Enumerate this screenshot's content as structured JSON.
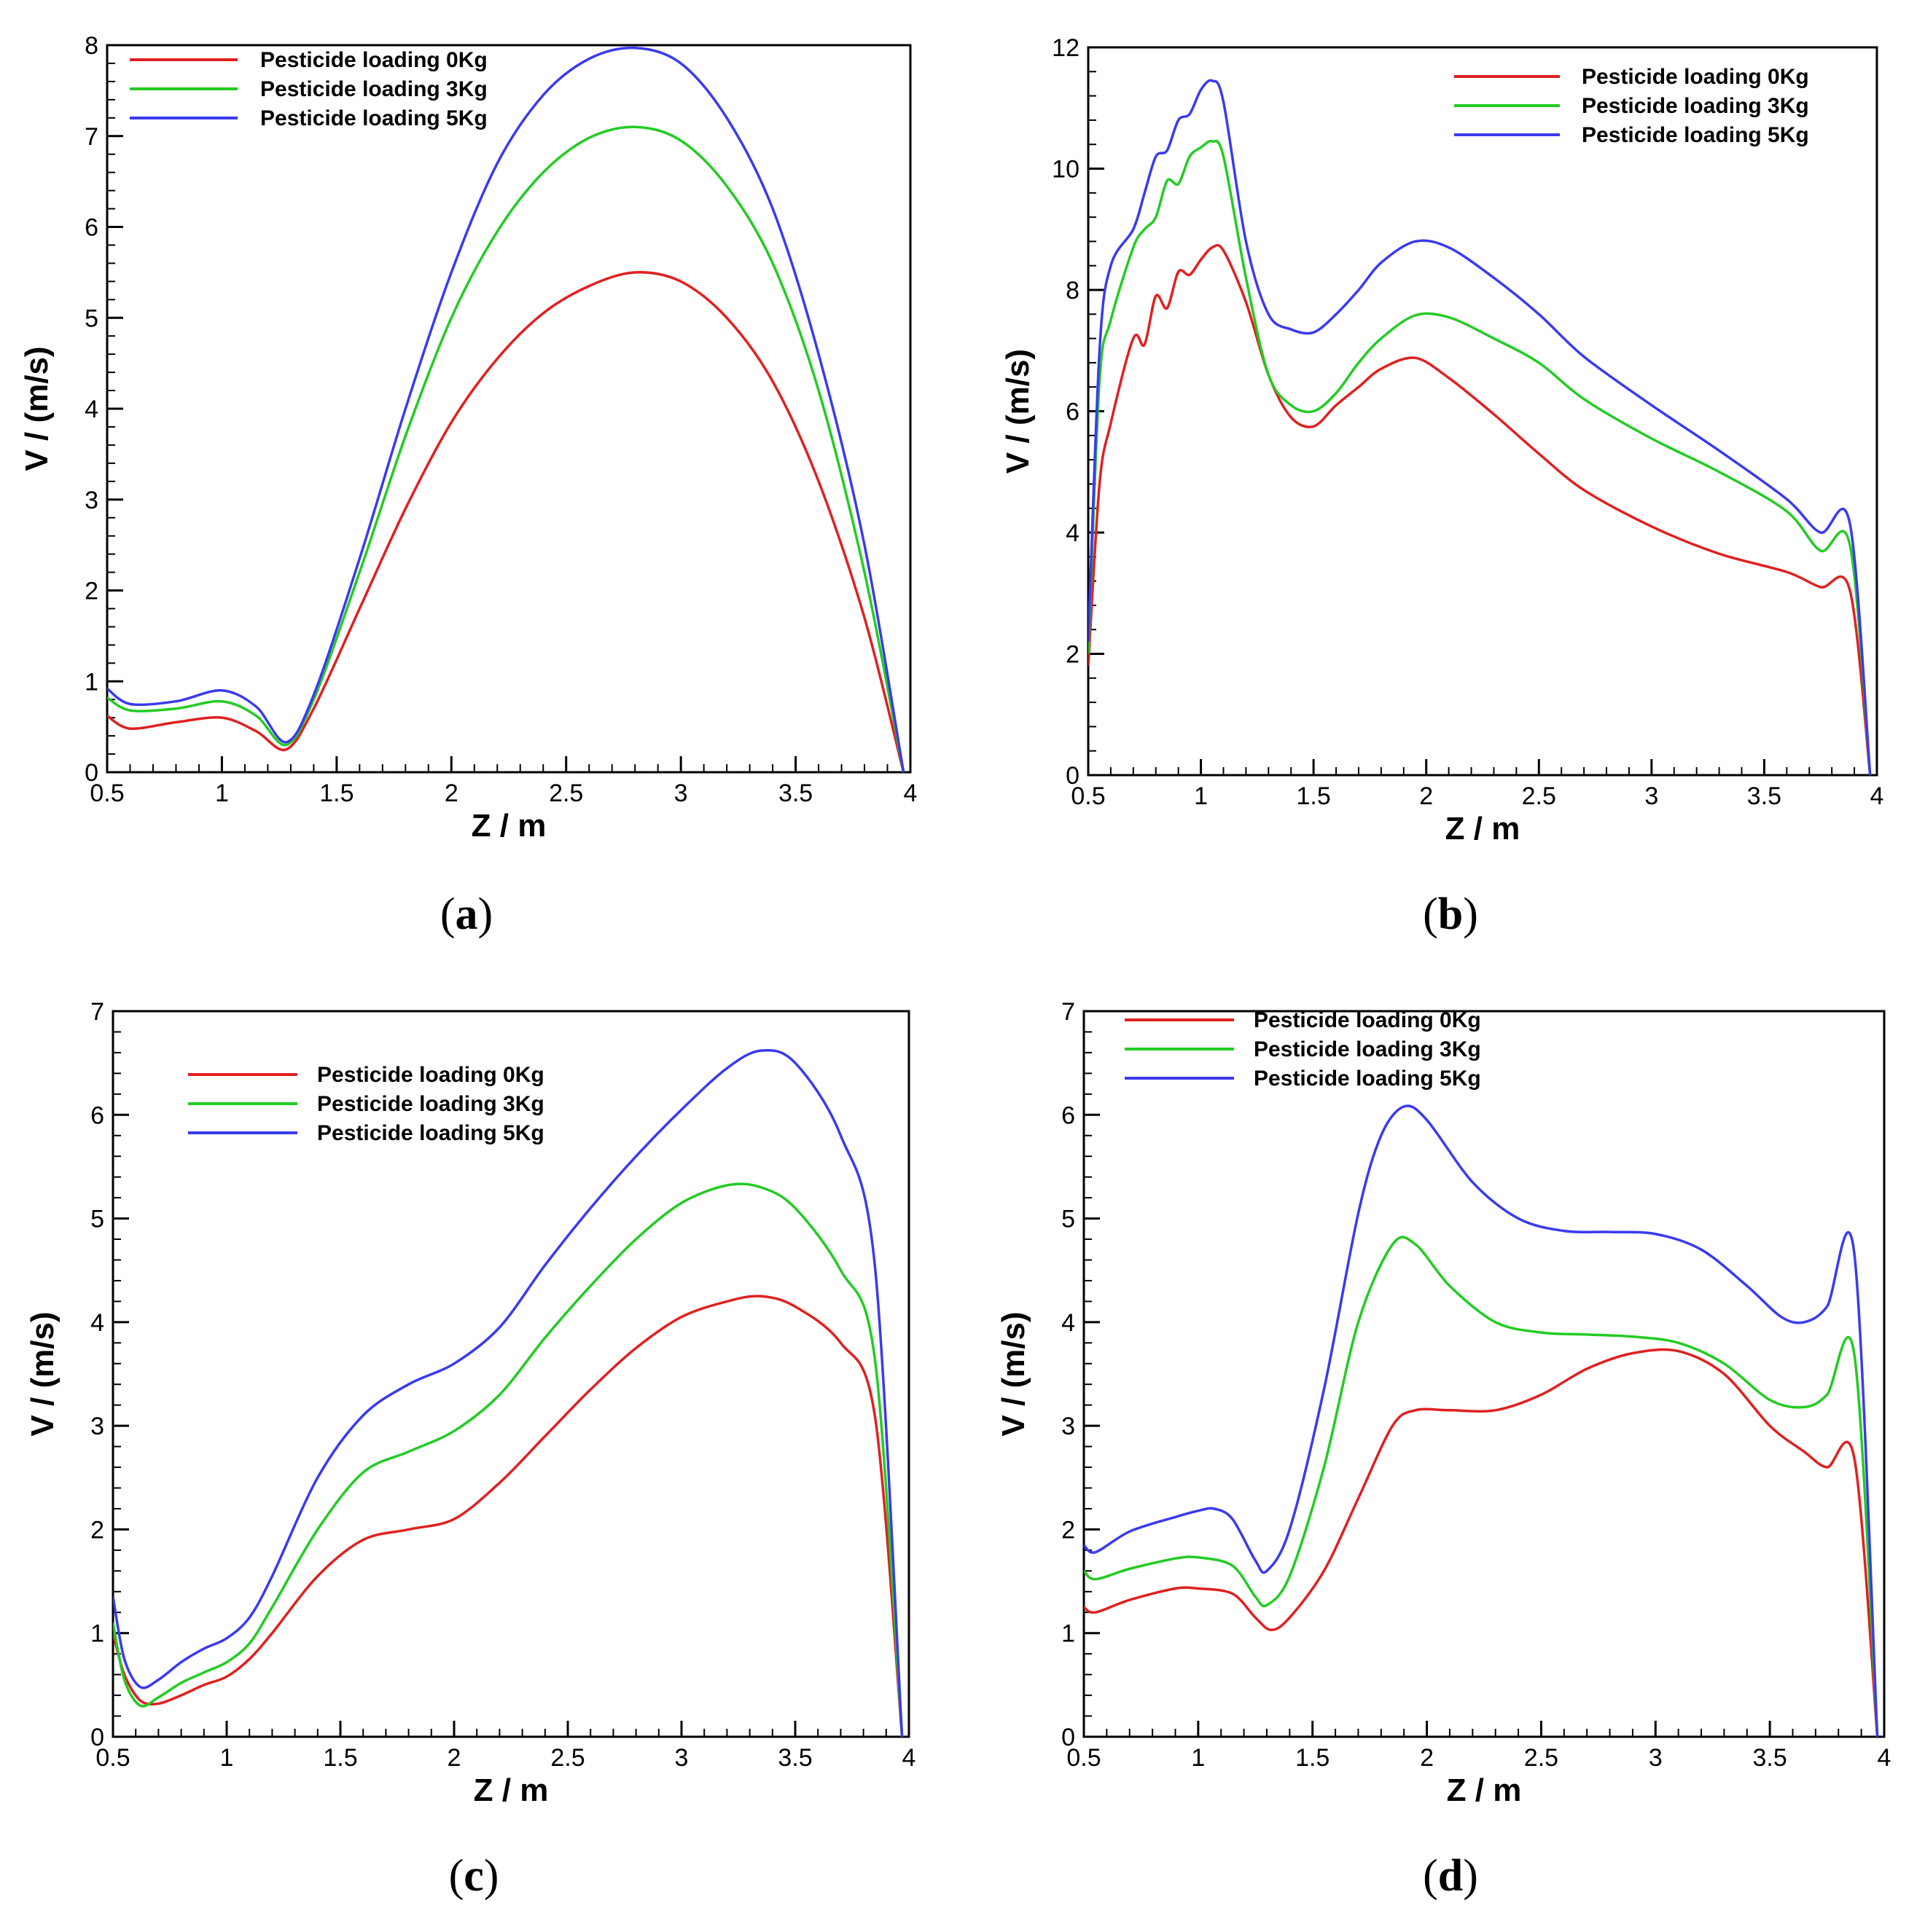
{
  "figure": {
    "colors": {
      "red": "#e02020",
      "green": "#22cc22",
      "blue": "#3a3af0"
    }
  },
  "chart_data": [
    {
      "panel_label": "(a)",
      "panel_letter": "a",
      "type": "line",
      "xlabel": "Z / m",
      "ylabel": "V / (m/s)",
      "xlim": [
        0.5,
        4
      ],
      "ylim": [
        0,
        8
      ],
      "xticks": [
        0.5,
        1,
        1.5,
        2,
        2.5,
        3,
        3.5,
        4
      ],
      "xtick_labels": [
        "0.5",
        "1",
        "1.5",
        "2",
        "2.5",
        "3",
        "3.5",
        "4"
      ],
      "yticks": [
        0,
        1,
        2,
        3,
        4,
        5,
        6,
        7,
        8
      ],
      "ytick_labels": [
        "0",
        "1",
        "2",
        "3",
        "4",
        "5",
        "6",
        "7",
        "8"
      ],
      "legend_position": "top-left",
      "series": [
        {
          "name": "Pesticide loading 0Kg",
          "color": "#e02020",
          "x": [
            0.5,
            0.6,
            0.8,
            1.0,
            1.15,
            1.28,
            1.4,
            1.6,
            1.8,
            2.0,
            2.2,
            2.4,
            2.6,
            2.8,
            3.0,
            3.2,
            3.4,
            3.6,
            3.8,
            3.97
          ],
          "y": [
            0.62,
            0.48,
            0.55,
            0.6,
            0.45,
            0.25,
            0.7,
            1.8,
            2.9,
            3.85,
            4.55,
            5.05,
            5.35,
            5.5,
            5.4,
            5.0,
            4.3,
            3.2,
            1.7,
            0.0
          ]
        },
        {
          "name": "Pesticide loading 3Kg",
          "color": "#22cc22",
          "x": [
            0.5,
            0.6,
            0.8,
            1.0,
            1.15,
            1.28,
            1.4,
            1.6,
            1.8,
            2.0,
            2.2,
            2.4,
            2.6,
            2.8,
            3.0,
            3.2,
            3.4,
            3.6,
            3.8,
            3.97
          ],
          "y": [
            0.82,
            0.68,
            0.7,
            0.78,
            0.62,
            0.3,
            0.8,
            2.2,
            3.7,
            5.0,
            5.95,
            6.6,
            6.98,
            7.1,
            6.95,
            6.45,
            5.6,
            4.2,
            2.2,
            0.0
          ]
        },
        {
          "name": "Pesticide loading 5Kg",
          "color": "#3a3af0",
          "x": [
            0.5,
            0.6,
            0.8,
            1.0,
            1.15,
            1.28,
            1.4,
            1.6,
            1.8,
            2.0,
            2.2,
            2.4,
            2.6,
            2.8,
            3.0,
            3.2,
            3.4,
            3.6,
            3.8,
            3.97
          ],
          "y": [
            0.92,
            0.75,
            0.78,
            0.9,
            0.72,
            0.33,
            0.85,
            2.35,
            4.0,
            5.5,
            6.7,
            7.45,
            7.85,
            7.97,
            7.8,
            7.2,
            6.2,
            4.6,
            2.5,
            0.0
          ]
        }
      ]
    },
    {
      "panel_label": "(b)",
      "panel_letter": "b",
      "type": "line",
      "xlabel": "Z / m",
      "ylabel": "V / (m/s)",
      "xlim": [
        0.5,
        4
      ],
      "ylim": [
        0,
        12
      ],
      "xticks": [
        0.5,
        1,
        1.5,
        2,
        2.5,
        3,
        3.5,
        4
      ],
      "xtick_labels": [
        "0.5",
        "1",
        "1.5",
        "2",
        "2.5",
        "3",
        "3.5",
        "4"
      ],
      "yticks": [
        0,
        2,
        4,
        6,
        8,
        10,
        12
      ],
      "ytick_labels": [
        "0",
        "2",
        "4",
        "6",
        "8",
        "10",
        "12"
      ],
      "legend_position": "top-right",
      "series": [
        {
          "name": "Pesticide loading 0Kg",
          "color": "#e02020",
          "x": [
            0.5,
            0.55,
            0.6,
            0.7,
            0.75,
            0.8,
            0.85,
            0.9,
            0.95,
            1.0,
            1.05,
            1.1,
            1.2,
            1.3,
            1.4,
            1.5,
            1.6,
            1.7,
            1.8,
            1.95,
            2.1,
            2.3,
            2.5,
            2.7,
            3.0,
            3.3,
            3.6,
            3.75,
            3.88,
            3.97
          ],
          "y": [
            1.8,
            4.8,
            5.8,
            7.2,
            7.1,
            7.9,
            7.7,
            8.3,
            8.25,
            8.5,
            8.7,
            8.65,
            7.8,
            6.6,
            5.9,
            5.75,
            6.1,
            6.4,
            6.7,
            6.88,
            6.55,
            5.95,
            5.3,
            4.7,
            4.1,
            3.65,
            3.35,
            3.1,
            3.05,
            0.0
          ]
        },
        {
          "name": "Pesticide loading 3Kg",
          "color": "#22cc22",
          "x": [
            0.5,
            0.55,
            0.6,
            0.7,
            0.75,
            0.8,
            0.85,
            0.9,
            0.95,
            1.0,
            1.05,
            1.1,
            1.2,
            1.3,
            1.4,
            1.5,
            1.6,
            1.7,
            1.8,
            1.95,
            2.1,
            2.3,
            2.5,
            2.7,
            3.0,
            3.3,
            3.6,
            3.75,
            3.88,
            3.97
          ],
          "y": [
            2.0,
            6.5,
            7.5,
            8.7,
            9.0,
            9.2,
            9.8,
            9.75,
            10.2,
            10.35,
            10.45,
            10.2,
            8.2,
            6.6,
            6.1,
            6.0,
            6.3,
            6.8,
            7.2,
            7.58,
            7.55,
            7.2,
            6.8,
            6.2,
            5.55,
            5.0,
            4.35,
            3.7,
            3.8,
            0.0
          ]
        },
        {
          "name": "Pesticide loading 5Kg",
          "color": "#3a3af0",
          "x": [
            0.5,
            0.55,
            0.6,
            0.7,
            0.75,
            0.8,
            0.85,
            0.9,
            0.95,
            1.0,
            1.05,
            1.1,
            1.2,
            1.3,
            1.4,
            1.5,
            1.6,
            1.7,
            1.8,
            1.95,
            2.1,
            2.3,
            2.5,
            2.7,
            3.0,
            3.3,
            3.6,
            3.75,
            3.88,
            3.97
          ],
          "y": [
            2.2,
            7.0,
            8.4,
            9.0,
            9.6,
            10.2,
            10.3,
            10.8,
            10.9,
            11.3,
            11.45,
            11.1,
            8.8,
            7.6,
            7.35,
            7.3,
            7.6,
            8.0,
            8.45,
            8.8,
            8.7,
            8.2,
            7.6,
            6.9,
            6.1,
            5.35,
            4.55,
            4.0,
            4.15,
            0.0
          ]
        }
      ]
    },
    {
      "panel_label": "(c)",
      "panel_letter": "c",
      "type": "line",
      "xlabel": "Z / m",
      "ylabel": "V / (m/s)",
      "xlim": [
        0.5,
        4
      ],
      "ylim": [
        0,
        7
      ],
      "xticks": [
        0.5,
        1,
        1.5,
        2,
        2.5,
        3,
        3.5,
        4
      ],
      "xtick_labels": [
        "0.5",
        "1",
        "1.5",
        "2",
        "2.5",
        "3",
        "3.5",
        "4"
      ],
      "yticks": [
        0,
        1,
        2,
        3,
        4,
        5,
        6,
        7
      ],
      "ytick_labels": [
        "0",
        "1",
        "2",
        "3",
        "4",
        "5",
        "6",
        "7"
      ],
      "legend_position": "top-left",
      "series": [
        {
          "name": "Pesticide loading 0Kg",
          "color": "#e02020",
          "x": [
            0.5,
            0.55,
            0.62,
            0.7,
            0.8,
            0.9,
            1.0,
            1.1,
            1.2,
            1.4,
            1.6,
            1.8,
            2.0,
            2.2,
            2.4,
            2.6,
            2.8,
            3.0,
            3.2,
            3.35,
            3.5,
            3.7,
            3.85,
            3.97
          ],
          "y": [
            1.0,
            0.6,
            0.35,
            0.32,
            0.4,
            0.5,
            0.58,
            0.75,
            1.0,
            1.55,
            1.9,
            2.0,
            2.1,
            2.45,
            2.9,
            3.35,
            3.75,
            4.05,
            4.2,
            4.25,
            4.15,
            3.8,
            3.1,
            0.0
          ]
        },
        {
          "name": "Pesticide loading 3Kg",
          "color": "#22cc22",
          "x": [
            0.5,
            0.55,
            0.62,
            0.7,
            0.8,
            0.9,
            1.0,
            1.1,
            1.2,
            1.4,
            1.6,
            1.8,
            2.0,
            2.2,
            2.4,
            2.6,
            2.8,
            3.0,
            3.2,
            3.35,
            3.5,
            3.7,
            3.85,
            3.97
          ],
          "y": [
            1.1,
            0.55,
            0.3,
            0.38,
            0.52,
            0.62,
            0.72,
            0.9,
            1.25,
            2.0,
            2.55,
            2.75,
            2.95,
            3.3,
            3.85,
            4.35,
            4.8,
            5.15,
            5.32,
            5.3,
            5.1,
            4.5,
            3.65,
            0.0
          ]
        },
        {
          "name": "Pesticide loading 5Kg",
          "color": "#3a3af0",
          "x": [
            0.5,
            0.55,
            0.62,
            0.7,
            0.8,
            0.9,
            1.0,
            1.1,
            1.2,
            1.4,
            1.6,
            1.8,
            2.0,
            2.2,
            2.4,
            2.6,
            2.8,
            3.0,
            3.2,
            3.35,
            3.5,
            3.7,
            3.85,
            3.97
          ],
          "y": [
            1.35,
            0.75,
            0.48,
            0.55,
            0.72,
            0.85,
            0.95,
            1.15,
            1.55,
            2.5,
            3.1,
            3.4,
            3.6,
            3.95,
            4.55,
            5.1,
            5.6,
            6.05,
            6.45,
            6.62,
            6.5,
            5.8,
            4.55,
            0.0
          ]
        }
      ]
    },
    {
      "panel_label": "(d)",
      "panel_letter": "d",
      "type": "line",
      "xlabel": "Z / m",
      "ylabel": "V / (m/s)",
      "xlim": [
        0.5,
        4
      ],
      "ylim": [
        0,
        7
      ],
      "xticks": [
        0.5,
        1,
        1.5,
        2,
        2.5,
        3,
        3.5,
        4
      ],
      "xtick_labels": [
        "0.5",
        "1",
        "1.5",
        "2",
        "2.5",
        "3",
        "3.5",
        "4"
      ],
      "yticks": [
        0,
        1,
        2,
        3,
        4,
        5,
        6,
        7
      ],
      "ytick_labels": [
        "0",
        "1",
        "2",
        "3",
        "4",
        "5",
        "6",
        "7"
      ],
      "legend_position": "top-left",
      "series": [
        {
          "name": "Pesticide loading 0Kg",
          "color": "#e02020",
          "x": [
            0.5,
            0.55,
            0.7,
            0.9,
            1.0,
            1.15,
            1.25,
            1.32,
            1.4,
            1.55,
            1.7,
            1.85,
            1.95,
            2.1,
            2.3,
            2.5,
            2.7,
            2.9,
            3.1,
            3.3,
            3.5,
            3.65,
            3.75,
            3.87,
            3.97
          ],
          "y": [
            1.25,
            1.2,
            1.32,
            1.43,
            1.43,
            1.38,
            1.15,
            1.03,
            1.15,
            1.6,
            2.3,
            3.0,
            3.15,
            3.15,
            3.15,
            3.3,
            3.55,
            3.7,
            3.72,
            3.5,
            3.0,
            2.75,
            2.6,
            2.68,
            0.0
          ]
        },
        {
          "name": "Pesticide loading 3Kg",
          "color": "#22cc22",
          "x": [
            0.5,
            0.55,
            0.7,
            0.9,
            1.0,
            1.15,
            1.25,
            1.3,
            1.4,
            1.55,
            1.7,
            1.85,
            1.95,
            2.1,
            2.3,
            2.5,
            2.7,
            2.9,
            3.1,
            3.3,
            3.5,
            3.65,
            3.75,
            3.87,
            3.97
          ],
          "y": [
            1.6,
            1.52,
            1.62,
            1.72,
            1.73,
            1.65,
            1.35,
            1.27,
            1.55,
            2.6,
            4.0,
            4.75,
            4.75,
            4.35,
            4.0,
            3.9,
            3.88,
            3.86,
            3.8,
            3.6,
            3.25,
            3.18,
            3.3,
            3.68,
            0.0
          ]
        },
        {
          "name": "Pesticide loading 5Kg",
          "color": "#3a3af0",
          "x": [
            0.5,
            0.55,
            0.7,
            0.9,
            1.0,
            1.07,
            1.15,
            1.25,
            1.3,
            1.4,
            1.55,
            1.7,
            1.8,
            1.9,
            2.0,
            2.2,
            2.4,
            2.6,
            2.8,
            3.0,
            3.2,
            3.4,
            3.55,
            3.65,
            3.75,
            3.87,
            3.97
          ],
          "y": [
            1.85,
            1.78,
            1.98,
            2.12,
            2.18,
            2.2,
            2.1,
            1.7,
            1.6,
            2.0,
            3.35,
            5.05,
            5.8,
            6.08,
            5.95,
            5.35,
            5.0,
            4.88,
            4.87,
            4.85,
            4.7,
            4.35,
            4.05,
            4.0,
            4.15,
            4.65,
            0.0
          ]
        }
      ]
    }
  ]
}
